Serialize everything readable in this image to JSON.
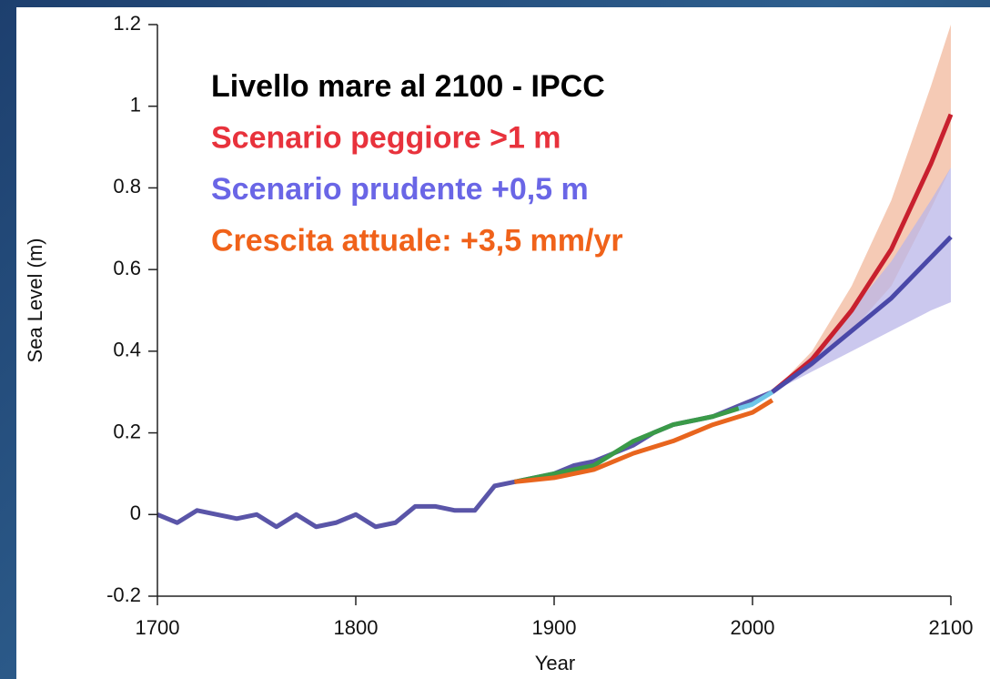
{
  "chart_data": {
    "type": "line",
    "y_label": "Sea Level (m)",
    "x_label": "Year",
    "annotations": [
      {
        "text": "Livello mare al 2100 - IPCC",
        "color": "#000000"
      },
      {
        "text": "Scenario peggiore >1 m",
        "color": "#e8323c"
      },
      {
        "text": "Scenario prudente +0,5 m",
        "color": "#6a66e6"
      },
      {
        "text": "Crescita attuale: +3,5 mm/yr",
        "color": "#f0621a"
      }
    ],
    "xlim": [
      1700,
      2100
    ],
    "xticks": [
      1700,
      1800,
      1900,
      2000,
      2100
    ],
    "ylim": [
      -0.2,
      1.2
    ],
    "yticks": [
      -0.2,
      0,
      0.2,
      0.4,
      0.6,
      0.8,
      1,
      1.2
    ],
    "bands": [
      {
        "color": "#f2b89c",
        "x": [
          2010,
          2030,
          2050,
          2070,
          2090,
          2100
        ],
        "lower": [
          0.3,
          0.36,
          0.45,
          0.56,
          0.75,
          0.85
        ],
        "upper": [
          0.3,
          0.4,
          0.56,
          0.77,
          1.05,
          1.2
        ]
      },
      {
        "color": "#b9b6e8",
        "x": [
          2010,
          2030,
          2050,
          2070,
          2090,
          2100
        ],
        "lower": [
          0.3,
          0.35,
          0.4,
          0.45,
          0.5,
          0.52
        ],
        "upper": [
          0.3,
          0.39,
          0.5,
          0.62,
          0.77,
          0.85
        ]
      }
    ],
    "series": [
      {
        "color": "#5a55a8",
        "x": [
          1700,
          1710,
          1720,
          1730,
          1740,
          1750,
          1760,
          1770,
          1780,
          1790,
          1800,
          1810,
          1820,
          1830,
          1840,
          1850,
          1860,
          1870,
          1880,
          1890,
          1900,
          1910,
          1920,
          1930,
          1940,
          1950,
          1960,
          1970,
          1980,
          1990,
          2000,
          2010
        ],
        "values": [
          0,
          -0.02,
          0.01,
          0,
          -0.01,
          0,
          -0.03,
          0,
          -0.03,
          -0.02,
          0,
          -0.03,
          -0.02,
          0.02,
          0.02,
          0.01,
          0.01,
          0.07,
          0.08,
          0.09,
          0.1,
          0.12,
          0.13,
          0.15,
          0.17,
          0.2,
          0.22,
          0.23,
          0.24,
          0.26,
          0.28,
          0.3
        ]
      },
      {
        "color": "#3a9a48",
        "x": [
          1880,
          1900,
          1920,
          1940,
          1960,
          1980,
          2000
        ],
        "values": [
          0.08,
          0.1,
          0.12,
          0.18,
          0.22,
          0.24,
          0.27
        ]
      },
      {
        "color": "#e8651e",
        "x": [
          1880,
          1900,
          1920,
          1940,
          1960,
          1980,
          2000,
          2010
        ],
        "values": [
          0.08,
          0.09,
          0.11,
          0.15,
          0.18,
          0.22,
          0.25,
          0.28
        ]
      },
      {
        "color": "#6ec6e8",
        "x": [
          1993,
          2000,
          2010
        ],
        "values": [
          0.26,
          0.27,
          0.3
        ]
      },
      {
        "color": "#c8202e",
        "x": [
          2010,
          2030,
          2050,
          2070,
          2090,
          2100
        ],
        "values": [
          0.3,
          0.38,
          0.5,
          0.65,
          0.86,
          0.98
        ]
      },
      {
        "color": "#4a48a8",
        "x": [
          2010,
          2030,
          2050,
          2070,
          2090,
          2100
        ],
        "values": [
          0.3,
          0.37,
          0.45,
          0.53,
          0.63,
          0.68
        ]
      }
    ]
  }
}
